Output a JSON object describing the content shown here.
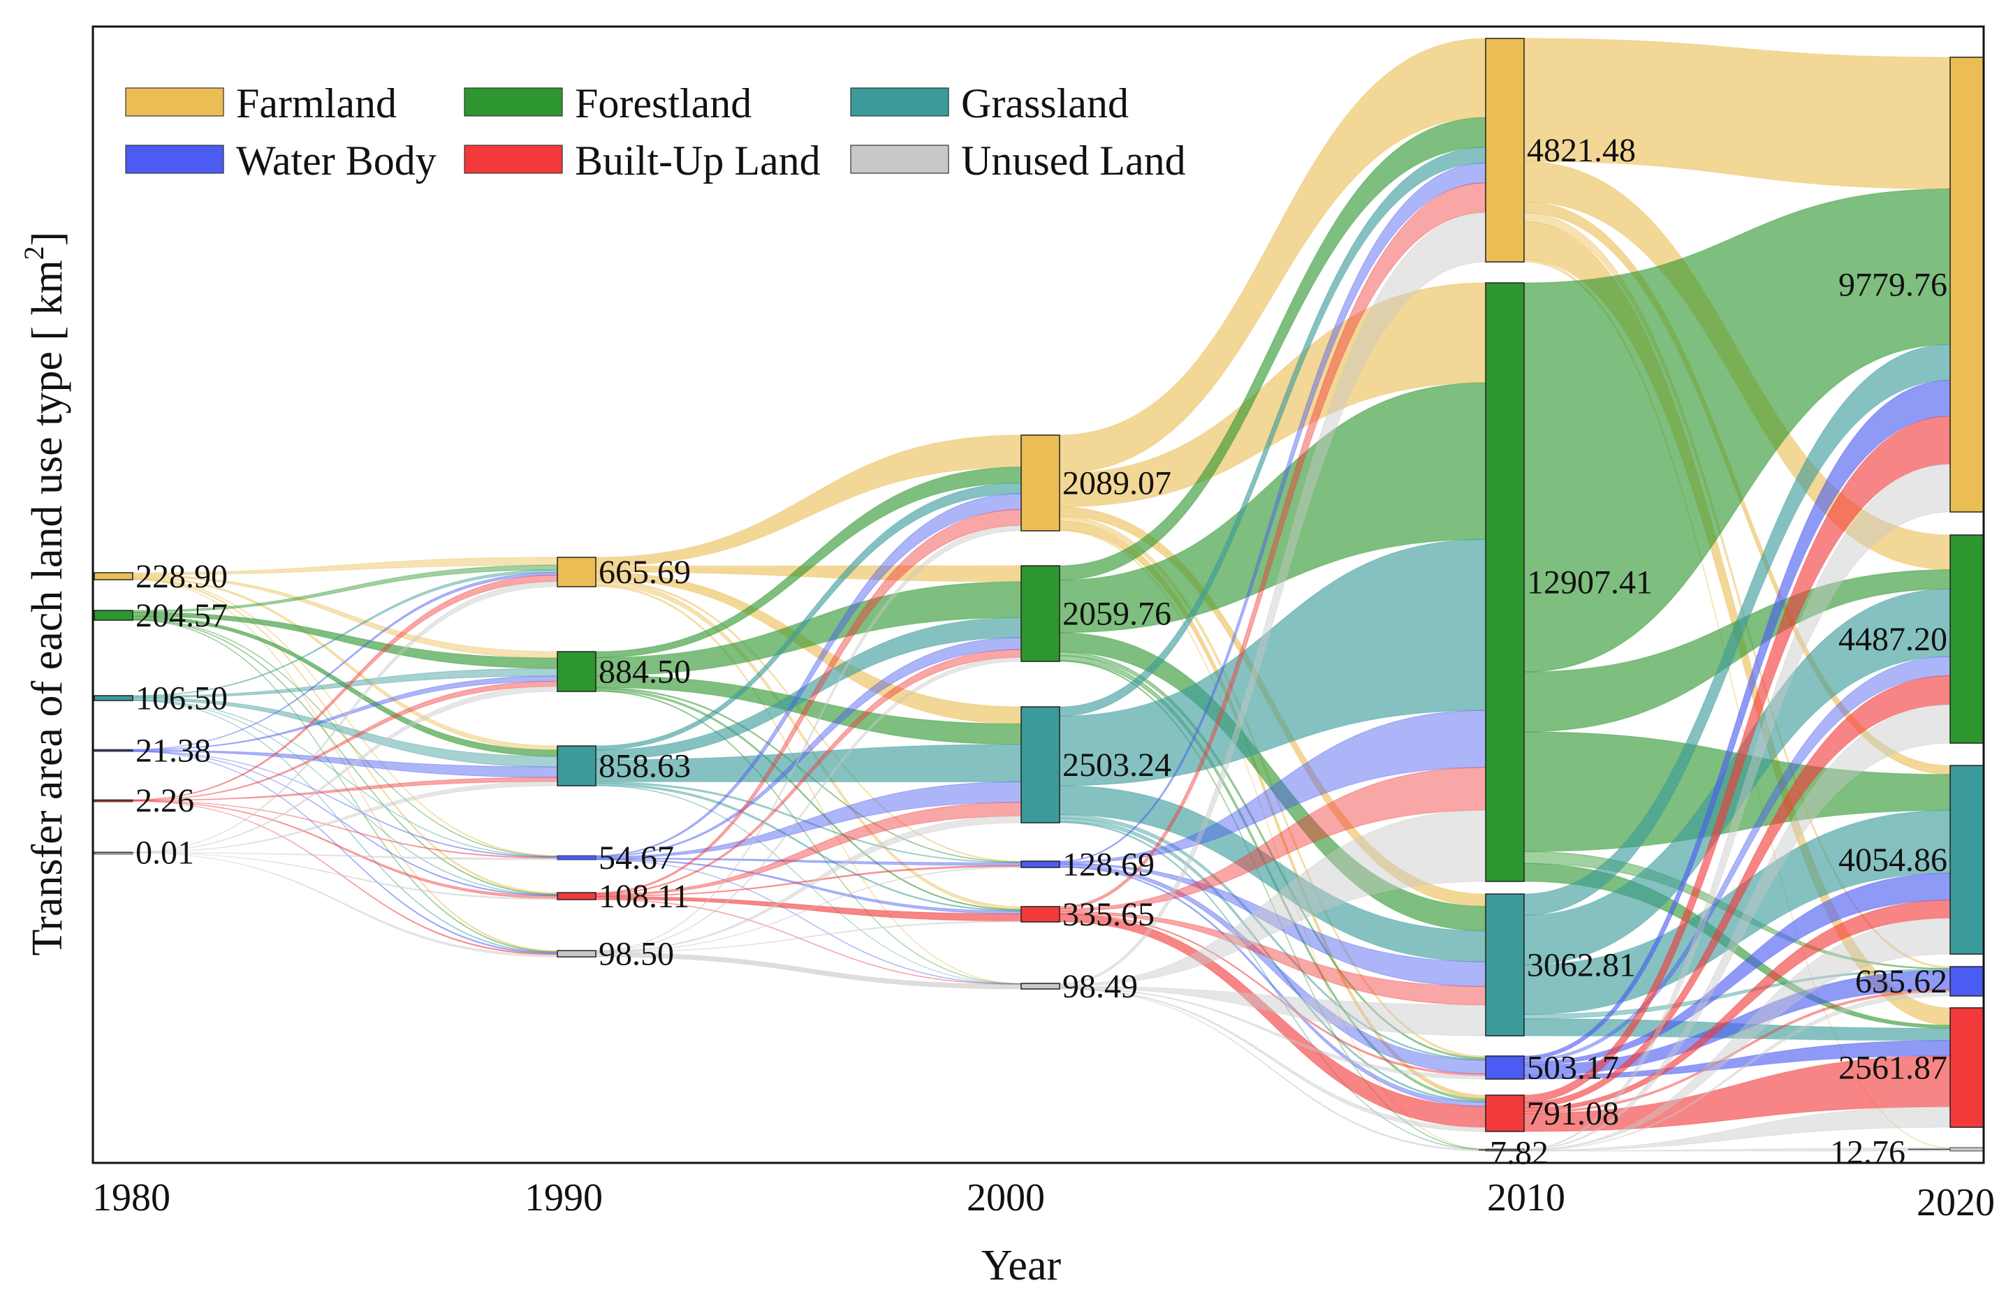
{
  "chart_data": {
    "type": "sankey",
    "title": "",
    "xlabel": "Year",
    "ylabel": "Transfer area of each land use type [ km",
    "ylabel_sup": "2",
    "ylabel_close": "]",
    "legend_position": "top-left",
    "categories": [
      "Farmland",
      "Forestland",
      "Grassland",
      "Water Body",
      "Built-Up Land",
      "Unused Land"
    ],
    "colors": {
      "Farmland": "#EBBE55",
      "Forestland": "#2E962E",
      "Grassland": "#3A9B9A",
      "Water Body": "#4A5CF2",
      "Built-Up Land": "#F23A3A",
      "Unused Land": "#C8C8C8"
    },
    "years": [
      "1980",
      "1990",
      "2000",
      "2010",
      "2020"
    ],
    "nodes": [
      {
        "year": "1980",
        "values": [
          228.9,
          204.57,
          106.5,
          21.38,
          2.26,
          0.01
        ],
        "labels": [
          "228.90",
          "204.57",
          "106.50",
          "21.38",
          "2.26",
          "0.01"
        ]
      },
      {
        "year": "1990",
        "values": [
          665.69,
          884.5,
          858.63,
          54.67,
          108.11,
          98.5
        ],
        "labels": [
          "665.69",
          "884.50",
          "858.63",
          "54.67",
          "108.11",
          "98.50"
        ]
      },
      {
        "year": "2000",
        "values": [
          2089.07,
          2059.76,
          2503.24,
          128.69,
          335.65,
          98.49
        ],
        "labels": [
          "2089.07",
          "2059.76",
          "2503.24",
          "128.69",
          "335.65",
          "98.49"
        ]
      },
      {
        "year": "2010",
        "values": [
          4821.48,
          12907.41,
          3062.81,
          503.17,
          791.08,
          7.82
        ],
        "labels": [
          "4821.48",
          "12907.41",
          "3062.81",
          "503.17",
          "791.08",
          "7.82"
        ]
      },
      {
        "year": "2020",
        "values": [
          9779.76,
          4487.2,
          4054.86,
          635.62,
          2561.87,
          12.76
        ],
        "labels": [
          "9779.76",
          "4487.20",
          "4054.86",
          "635.62",
          "2561.87",
          "12.76"
        ]
      }
    ]
  }
}
